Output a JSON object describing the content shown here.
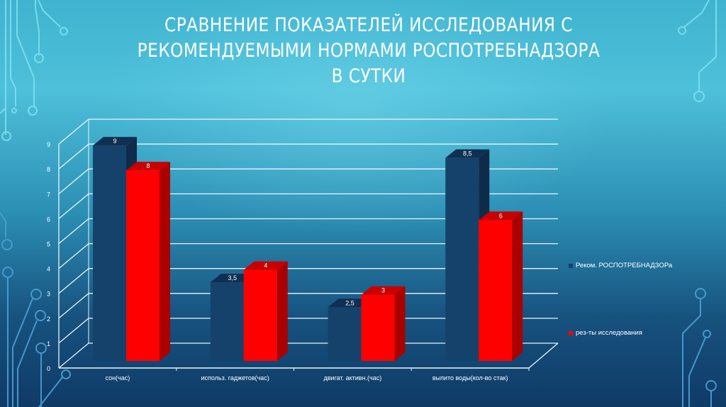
{
  "slide": {
    "title_lines": [
      "СРАВНЕНИЕ ПОКАЗАТЕЛЕЙ ИССЛЕДОВАНИЯ С",
      "РЕКОМЕНДУЕМЫМИ НОРМАМИ РОСПОТРЕБНАДЗОРА",
      "В СУТКИ"
    ]
  },
  "colors": {
    "series_recommended": "#15426b",
    "series_results": "#ff0000",
    "gridline": "#e8f6fb",
    "text": "#ffffff"
  },
  "chart_data": {
    "type": "bar",
    "title": "СРАВНЕНИЕ ПОКАЗАТЕЛЕЙ ИССЛЕДОВАНИЯ С РЕКОМЕНДУЕМЫМИ НОРМАМИ РОСПОТРЕБНАДЗОРА В СУТКИ",
    "categories": [
      "сон(час)",
      "использ. гаджетов(час)",
      "двигат. активн.(час)",
      "выпито воды(кол-во стак)"
    ],
    "series": [
      {
        "name": "Реком. РОСПОТРЕБНАДЗОРа",
        "values": [
          9,
          3.5,
          2.5,
          8.5
        ],
        "labels": [
          "9",
          "3,5",
          "2,5",
          "8,5"
        ],
        "color": "#15426b"
      },
      {
        "name": "рез-ты исследования",
        "values": [
          8,
          4,
          3,
          6
        ],
        "labels": [
          "8",
          "4",
          "3",
          "6"
        ],
        "color": "#ff0000"
      }
    ],
    "yticks": [
      "0",
      "1",
      "2",
      "3",
      "4",
      "5",
      "6",
      "7",
      "8",
      "9"
    ],
    "ylim": [
      0,
      9
    ],
    "xlabel": "",
    "ylabel": "",
    "grid": true,
    "style": "3d-clustered-column",
    "legend_position": "right"
  },
  "legend": {
    "items": [
      {
        "label": "Реком. РОСПОТРЕБНАДЗОРа",
        "color": "#15426b"
      },
      {
        "label": "рез-ты исследования",
        "color": "#ff0000"
      }
    ]
  }
}
